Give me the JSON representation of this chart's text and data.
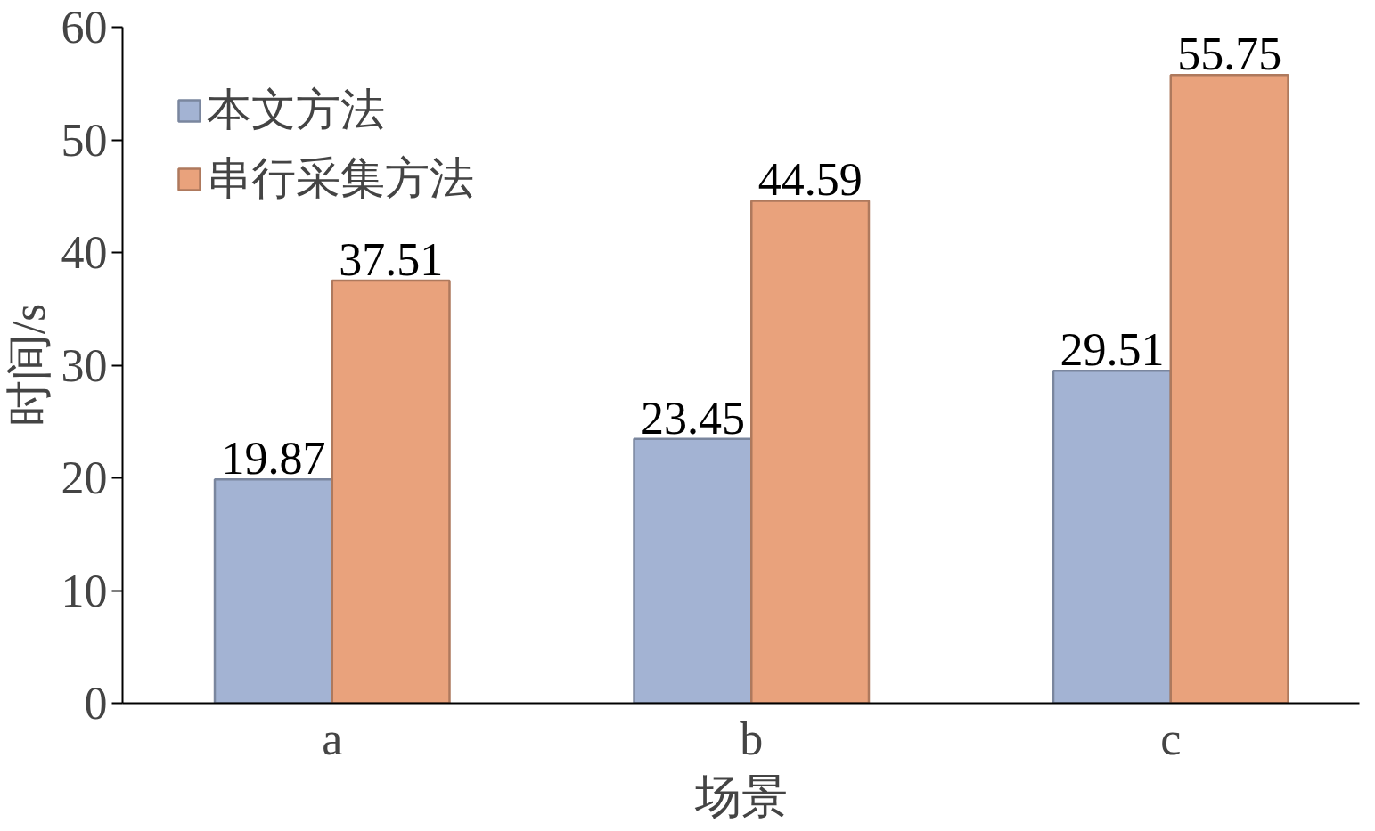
{
  "chart_data": {
    "type": "bar",
    "xlabel": "场景",
    "ylabel": "时间/s",
    "categories": [
      "a",
      "b",
      "c"
    ],
    "series": [
      {
        "name": "本文方法",
        "color": "#a3b3d3",
        "values": [
          19.87,
          23.45,
          29.51
        ]
      },
      {
        "name": "串行采集方法",
        "color": "#e9a27c",
        "values": [
          37.51,
          44.59,
          55.75
        ]
      }
    ],
    "ylim": [
      0,
      60
    ],
    "yticks": [
      0,
      10,
      20,
      30,
      40,
      50,
      60
    ],
    "data_labels": true,
    "legend": "top left",
    "grid": false
  }
}
